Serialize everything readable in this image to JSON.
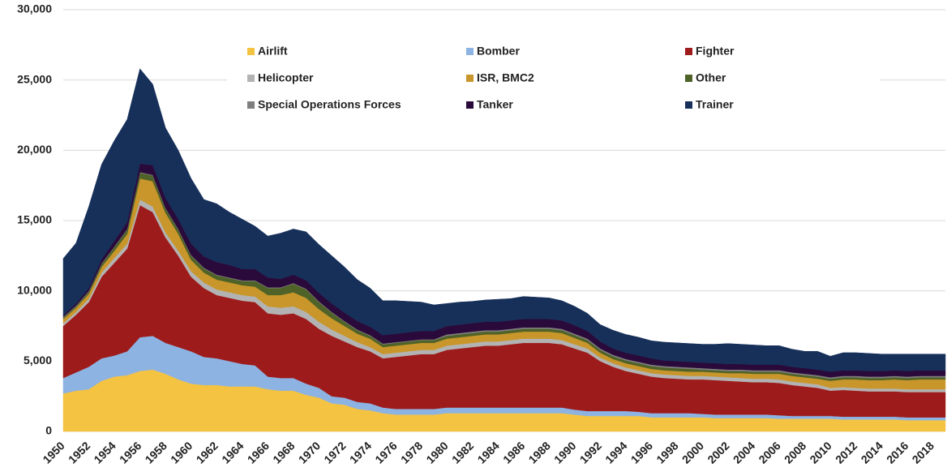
{
  "chart_data": {
    "type": "stacked_area",
    "categories": [
      "1950",
      null,
      "1952",
      null,
      "1954",
      null,
      "1956",
      null,
      "1958",
      null,
      "1960",
      null,
      "1962",
      null,
      "1964",
      null,
      "1966",
      null,
      "1968",
      null,
      "1970",
      null,
      "1972",
      null,
      "1974",
      null,
      "1976",
      null,
      "1978",
      null,
      "1980",
      null,
      "1982",
      null,
      "1984",
      null,
      "1986",
      null,
      "1988",
      null,
      "1990",
      null,
      "1992",
      null,
      "1994",
      null,
      "1996",
      null,
      "1998",
      null,
      "2000",
      null,
      "2002",
      null,
      "2004",
      null,
      "2006",
      null,
      "2008",
      null,
      "2010",
      null,
      "2012",
      null,
      "2014",
      null,
      "2016",
      null,
      "2018",
      null
    ],
    "ylim": [
      0,
      30000
    ],
    "yticks": [
      0,
      {
        "value": 5000,
        "label": "5,000"
      },
      {
        "value": 10000,
        "label": "10,000"
      },
      {
        "value": 15000,
        "label": "15,000"
      },
      {
        "value": 20000,
        "label": "20,000"
      },
      {
        "value": 25000,
        "label": "25,000"
      },
      {
        "value": 30000,
        "label": "30,000"
      }
    ],
    "grid": true,
    "legend": "top",
    "series": [
      {
        "name": "Airlift",
        "color": "#f5c342",
        "values": [
          2700,
          2900,
          3000,
          3600,
          3900,
          4000,
          4300,
          4400,
          4100,
          3700,
          3400,
          3300,
          3300,
          3200,
          3200,
          3200,
          3000,
          2900,
          2900,
          2600,
          2400,
          2000,
          1900,
          1600,
          1500,
          1300,
          1200,
          1200,
          1200,
          1200,
          1300,
          1300,
          1300,
          1300,
          1300,
          1300,
          1300,
          1300,
          1300,
          1300,
          1200,
          1100,
          1100,
          1100,
          1100,
          1100,
          1000,
          1000,
          1000,
          1000,
          1000,
          950,
          950,
          950,
          950,
          950,
          900,
          900,
          900,
          900,
          900,
          850,
          850,
          850,
          850,
          850,
          800,
          800,
          800,
          800
        ]
      },
      {
        "name": "Bomber",
        "color": "#8db3e2",
        "values": [
          1100,
          1300,
          1600,
          1600,
          1500,
          1700,
          2400,
          2400,
          2200,
          2300,
          2300,
          2000,
          1900,
          1800,
          1600,
          1500,
          900,
          900,
          900,
          800,
          700,
          500,
          500,
          500,
          500,
          400,
          400,
          400,
          400,
          400,
          400,
          400,
          400,
          400,
          400,
          400,
          400,
          400,
          400,
          400,
          350,
          350,
          350,
          350,
          350,
          300,
          300,
          300,
          300,
          300,
          250,
          250,
          250,
          250,
          250,
          250,
          250,
          200,
          200,
          200,
          200,
          200,
          200,
          200,
          200,
          200,
          200,
          200,
          200,
          200
        ]
      },
      {
        "name": "Fighter",
        "color": "#9e1b1b",
        "values": [
          3700,
          4100,
          4600,
          5800,
          6600,
          7300,
          9400,
          8800,
          7500,
          6500,
          5300,
          4900,
          4500,
          4500,
          4500,
          4500,
          4500,
          4500,
          4600,
          4600,
          4200,
          4300,
          4000,
          3900,
          3700,
          3500,
          3700,
          3800,
          3900,
          3900,
          4100,
          4200,
          4300,
          4400,
          4400,
          4500,
          4600,
          4600,
          4600,
          4500,
          4350,
          4150,
          3550,
          3150,
          2850,
          2700,
          2600,
          2500,
          2450,
          2400,
          2450,
          2450,
          2400,
          2350,
          2300,
          2300,
          2300,
          2200,
          2100,
          2000,
          1800,
          1900,
          1850,
          1800,
          1800,
          1800,
          1800,
          1800,
          1800,
          1800
        ]
      },
      {
        "name": "Helicopter",
        "color": "#b3b3b3",
        "values": [
          200,
          200,
          250,
          300,
          350,
          350,
          400,
          400,
          350,
          350,
          400,
          400,
          400,
          400,
          400,
          400,
          500,
          500,
          500,
          500,
          500,
          450,
          400,
          350,
          300,
          300,
          300,
          300,
          300,
          300,
          300,
          300,
          300,
          300,
          300,
          300,
          300,
          300,
          300,
          300,
          300,
          300,
          250,
          250,
          250,
          250,
          250,
          250,
          250,
          250,
          250,
          250,
          250,
          250,
          250,
          250,
          250,
          250,
          250,
          250,
          200,
          200,
          200,
          200,
          200,
          200,
          200,
          200,
          200,
          200
        ]
      },
      {
        "name": "ISR, BMC2",
        "color": "#c8962a",
        "values": [
          300,
          300,
          350,
          400,
          500,
          700,
          1500,
          1800,
          1400,
          1200,
          800,
          700,
          700,
          700,
          700,
          700,
          800,
          900,
          1000,
          1000,
          900,
          800,
          700,
          600,
          600,
          500,
          500,
          500,
          500,
          500,
          500,
          500,
          500,
          500,
          500,
          500,
          500,
          500,
          500,
          500,
          450,
          400,
          350,
          300,
          300,
          300,
          300,
          300,
          300,
          300,
          300,
          300,
          300,
          350,
          350,
          350,
          400,
          400,
          400,
          400,
          500,
          550,
          600,
          600,
          600,
          650,
          650,
          700,
          700,
          700
        ]
      },
      {
        "name": "Other",
        "color": "#4f6228",
        "values": [
          100,
          100,
          150,
          200,
          250,
          300,
          400,
          400,
          300,
          300,
          300,
          300,
          300,
          300,
          300,
          400,
          500,
          500,
          600,
          600,
          500,
          400,
          300,
          250,
          200,
          200,
          200,
          200,
          200,
          200,
          200,
          200,
          200,
          200,
          200,
          200,
          200,
          200,
          200,
          200,
          200,
          200,
          200,
          200,
          200,
          200,
          200,
          200,
          200,
          200,
          150,
          150,
          150,
          150,
          150,
          150,
          150,
          150,
          150,
          150,
          150,
          150,
          150,
          150,
          150,
          150,
          150,
          150,
          150,
          150
        ]
      },
      {
        "name": "Special Operations Forces",
        "color": "#7f7f7f",
        "values": [
          50,
          50,
          50,
          50,
          50,
          50,
          50,
          50,
          50,
          50,
          50,
          50,
          50,
          50,
          50,
          50,
          50,
          50,
          50,
          50,
          50,
          50,
          50,
          50,
          50,
          50,
          50,
          50,
          50,
          50,
          100,
          100,
          100,
          100,
          100,
          100,
          100,
          100,
          100,
          100,
          100,
          100,
          100,
          100,
          100,
          100,
          100,
          100,
          100,
          100,
          100,
          100,
          100,
          100,
          100,
          100,
          100,
          100,
          100,
          100,
          100,
          100,
          100,
          100,
          100,
          100,
          100,
          100,
          100,
          100
        ]
      },
      {
        "name": "Tanker",
        "color": "#2a0a3a",
        "values": [
          100,
          150,
          200,
          300,
          400,
          500,
          600,
          700,
          700,
          700,
          800,
          800,
          900,
          900,
          800,
          800,
          700,
          600,
          600,
          600,
          600,
          600,
          600,
          600,
          600,
          600,
          600,
          600,
          600,
          600,
          600,
          600,
          600,
          600,
          600,
          600,
          600,
          600,
          600,
          600,
          600,
          550,
          500,
          450,
          450,
          450,
          450,
          400,
          400,
          400,
          400,
          400,
          400,
          400,
          400,
          400,
          400,
          400,
          400,
          400,
          400,
          400,
          400,
          400,
          400,
          400,
          400,
          400,
          400,
          400
        ]
      },
      {
        "name": "Trainer",
        "color": "#17305a",
        "values": [
          4050,
          4300,
          5800,
          6750,
          7150,
          7300,
          6750,
          5750,
          5000,
          4900,
          4650,
          4050,
          4150,
          3750,
          3550,
          3050,
          2950,
          3250,
          3250,
          3450,
          3450,
          3400,
          3250,
          2950,
          2750,
          2450,
          2350,
          2200,
          2050,
          1850,
          1600,
          1600,
          1550,
          1550,
          1600,
          1550,
          1600,
          1550,
          1500,
          1400,
          1350,
          1250,
          1200,
          1300,
          1300,
          1300,
          1250,
          1300,
          1300,
          1300,
          1300,
          1350,
          1450,
          1400,
          1400,
          1350,
          1350,
          1250,
          1200,
          1300,
          1100,
          1250,
          1250,
          1250,
          1200,
          1150,
          1200,
          1150,
          1150,
          1150
        ]
      }
    ]
  }
}
